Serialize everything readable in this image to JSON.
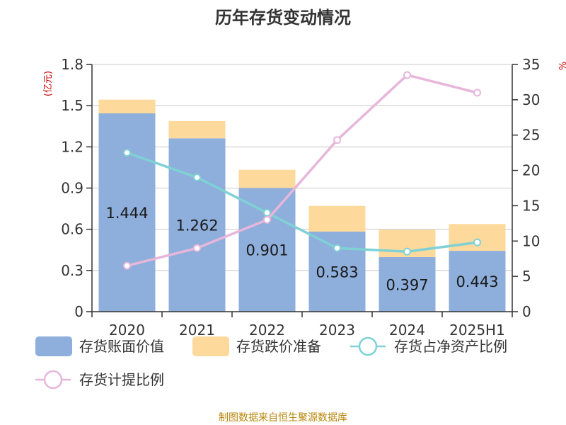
{
  "chart_data": {
    "type": "bar",
    "title": "历年存货变动情况",
    "categories": [
      "2020",
      "2021",
      "2022",
      "2023",
      "2024",
      "2025H1"
    ],
    "left_axis": {
      "unit": "(亿元)",
      "ticks": [
        "0",
        "0.3",
        "0.6",
        "0.9",
        "1.2",
        "1.5",
        "1.8"
      ],
      "ylim": [
        0,
        1.8
      ]
    },
    "right_axis": {
      "unit": "%",
      "ticks": [
        "0",
        "5",
        "10",
        "15",
        "20",
        "25",
        "30",
        "35"
      ],
      "ylim": [
        0,
        35
      ]
    },
    "series": [
      {
        "name": "存货账面价值",
        "kind": "bar",
        "axis": "left",
        "color": "#8eaedb",
        "values": [
          1.444,
          1.262,
          0.901,
          0.583,
          0.397,
          0.443
        ],
        "labels": [
          "1.444",
          "1.262",
          "0.901",
          "0.583",
          "0.397",
          "0.443"
        ]
      },
      {
        "name": "存货跌价准备",
        "kind": "bar",
        "axis": "left",
        "stacked": true,
        "color": "#fdd99b",
        "values": [
          0.1,
          0.126,
          0.132,
          0.187,
          0.2,
          0.195
        ]
      },
      {
        "name": "存货占净资产比例",
        "kind": "line",
        "axis": "right",
        "color": "#7fd1d6",
        "values": [
          22.5,
          19.0,
          14.0,
          9.0,
          8.5,
          9.8
        ]
      },
      {
        "name": "存货计提比例",
        "kind": "line",
        "axis": "right",
        "color": "#e7b6db",
        "values": [
          6.5,
          9.0,
          13.0,
          24.3,
          33.5,
          31.0
        ]
      }
    ],
    "legend": "bottom",
    "grid": true
  },
  "footer": {
    "source": "制图数据来自恒生聚源数据库"
  }
}
